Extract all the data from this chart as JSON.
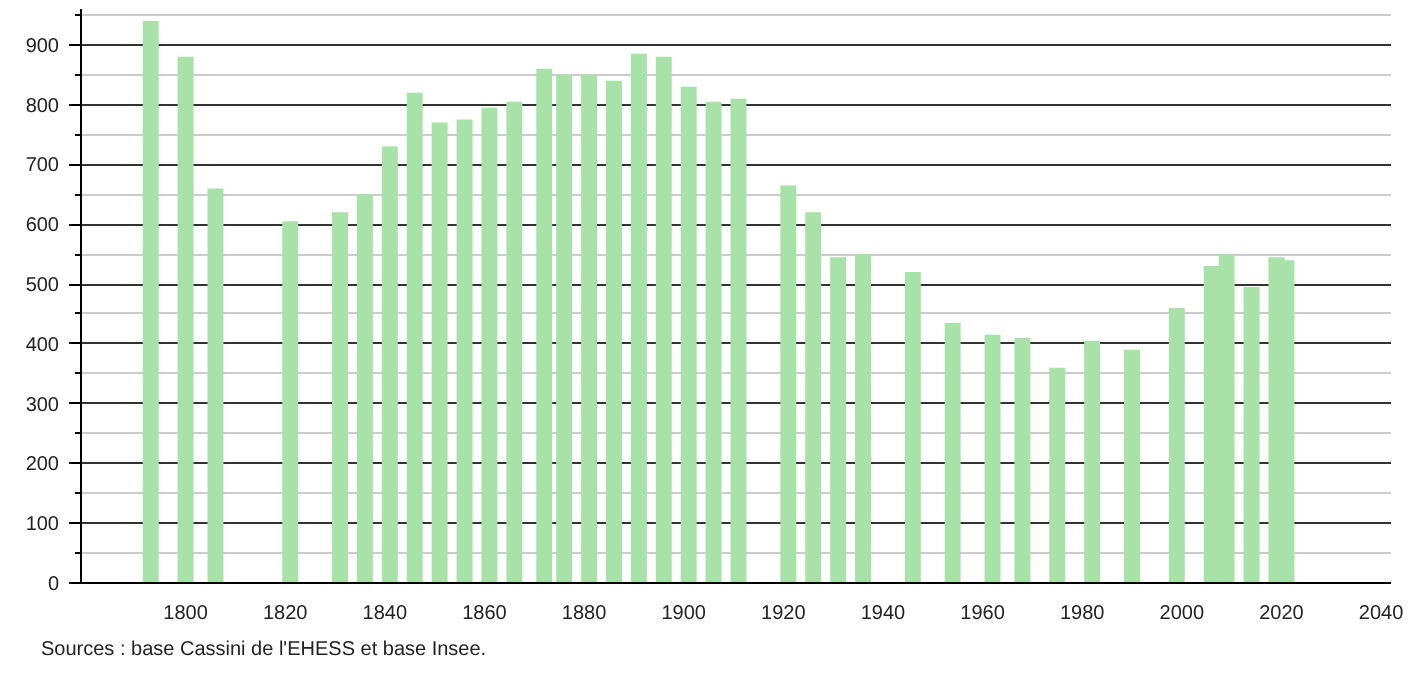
{
  "chart_data": {
    "type": "bar",
    "x": [
      1793,
      1800,
      1806,
      1821,
      1831,
      1836,
      1841,
      1846,
      1851,
      1856,
      1861,
      1866,
      1872,
      1876,
      1881,
      1886,
      1891,
      1896,
      1901,
      1906,
      1911,
      1921,
      1926,
      1931,
      1936,
      1946,
      1954,
      1962,
      1968,
      1975,
      1982,
      1990,
      1999,
      2006,
      2009,
      2014,
      2019,
      2021
    ],
    "values": [
      940,
      880,
      660,
      605,
      620,
      650,
      730,
      820,
      770,
      775,
      795,
      805,
      860,
      850,
      850,
      840,
      885,
      880,
      830,
      805,
      810,
      665,
      620,
      545,
      550,
      520,
      435,
      415,
      410,
      360,
      405,
      390,
      460,
      530,
      550,
      495,
      545,
      540
    ],
    "color": "#a8e2a8",
    "xlim": [
      1779,
      2042
    ],
    "xticks": [
      1800,
      1820,
      1840,
      1860,
      1880,
      1900,
      1920,
      1940,
      1960,
      1980,
      2000,
      2020,
      2040
    ],
    "ylim": [
      0,
      960
    ],
    "yticks": [
      0,
      100,
      200,
      300,
      400,
      500,
      600,
      700,
      800,
      900
    ],
    "grid": "y",
    "annotations": [
      "Sources : base Cassini de l'EHESS et base Insee."
    ]
  }
}
